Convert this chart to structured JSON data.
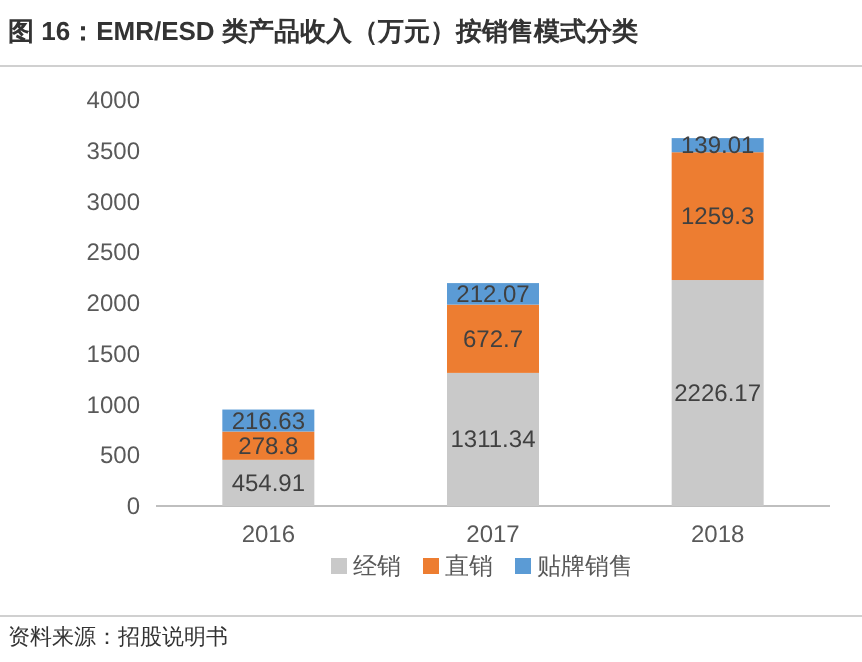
{
  "chart_data": {
    "type": "bar",
    "title": "图 16：EMR/ESD 类产品收入（万元）按销售模式分类",
    "categories": [
      "2016",
      "2017",
      "2018"
    ],
    "stacked": true,
    "series": [
      {
        "name": "经销",
        "color": "#c9c9c9",
        "values": [
          454.91,
          1311.34,
          2226.17
        ]
      },
      {
        "name": "直销",
        "color": "#ed7d31",
        "values": [
          278.8,
          672.7,
          1259.3
        ]
      },
      {
        "name": "贴牌销售",
        "color": "#5b9bd5",
        "values": [
          216.63,
          212.07,
          139.01
        ]
      }
    ],
    "ylim": [
      0,
      4000
    ],
    "yticks": [
      0,
      500,
      1000,
      1500,
      2000,
      2500,
      3000,
      3500,
      4000
    ],
    "data_labels": true,
    "legend": "bottom",
    "grid": false,
    "annotations": [
      "资料来源：招股说明书"
    ]
  }
}
